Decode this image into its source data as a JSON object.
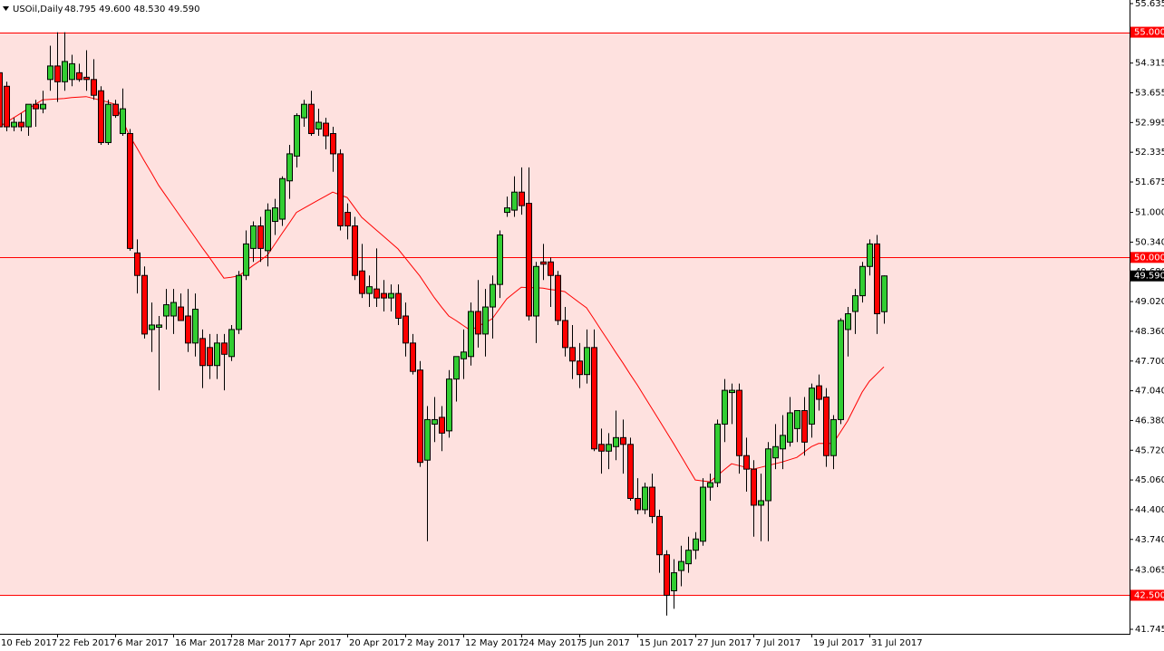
{
  "chart_data": {
    "type": "candlestick",
    "title": "USOil,Daily",
    "subtitle": "48.795 49.600 48.530 49.590",
    "categories": [
      "10 Feb 2017",
      null,
      null,
      null,
      null,
      null,
      null,
      null,
      "22 Feb 2017",
      null,
      null,
      null,
      null,
      null,
      null,
      null,
      "6 Mar 2017",
      null,
      null,
      null,
      null,
      null,
      null,
      null,
      "16 Mar 2017",
      null,
      null,
      null,
      null,
      null,
      null,
      null,
      "28 Mar 2017",
      null,
      null,
      null,
      null,
      null,
      null,
      null,
      "7 Apr 2017",
      null,
      null,
      null,
      null,
      null,
      null,
      null,
      "20 Apr 2017",
      null,
      null,
      null,
      null,
      null,
      null,
      null,
      "2 May 2017",
      null,
      null,
      null,
      null,
      null,
      null,
      null,
      "12 May 2017",
      null,
      null,
      null,
      null,
      null,
      null,
      null,
      "24 May 2017",
      null,
      null,
      null,
      null,
      null,
      null,
      null,
      "5 Jun 2017",
      null,
      null,
      null,
      null,
      null,
      null,
      null,
      "15 Jun 2017",
      null,
      null,
      null,
      null,
      null,
      null,
      null,
      "27 Jun 2017",
      null,
      null,
      null,
      null,
      null,
      null,
      null,
      "7 Jul 2017",
      null,
      null,
      null,
      null,
      null,
      null,
      null,
      "19 Jul 2017",
      null,
      null,
      null,
      null,
      null,
      null,
      null,
      "31 Jul 2017",
      null,
      null
    ],
    "open": [
      54.1,
      53.8,
      52.9,
      53.0,
      52.9,
      53.4,
      53.3,
      53.95,
      54.25,
      53.9,
      53.95,
      54.1,
      54.0,
      53.95,
      53.7,
      52.55,
      53.4,
      52.75,
      52.75,
      50.1,
      49.6,
      48.4,
      48.45,
      48.7,
      48.7,
      48.9,
      48.7,
      48.1,
      48.2,
      48.0,
      47.6,
      48.1,
      47.8,
      48.4,
      49.6,
      50.2,
      50.7,
      50.15,
      50.8,
      50.85,
      51.7,
      52.25,
      53.1,
      53.4,
      52.85,
      52.98,
      52.75,
      52.3,
      51.0,
      50.7,
      49.7,
      49.2,
      49.3,
      49.2,
      49.1,
      49.2,
      48.7,
      48.1,
      47.5,
      45.5,
      46.3,
      46.45,
      46.15,
      47.3,
      47.75,
      47.8,
      48.8,
      48.3,
      48.9,
      49.4,
      51.0,
      51.05,
      51.45,
      51.2,
      48.7,
      49.9,
      49.9,
      49.6,
      48.6,
      48.0,
      47.7,
      47.4,
      48.0,
      45.85,
      45.7,
      45.8,
      46.0,
      45.85,
      44.65,
      44.4,
      44.9,
      44.25,
      43.4,
      42.6,
      43.05,
      43.2,
      43.5,
      43.7,
      44.9,
      45.0,
      46.3,
      47.0,
      47.05,
      45.6,
      45.3,
      44.5,
      44.6,
      45.55,
      45.75,
      45.9,
      46.2,
      46.6,
      46.3,
      47.15,
      46.9,
      45.6,
      46.4,
      48.4,
      48.8,
      49.15,
      49.8,
      50.3,
      48.795
    ],
    "high": [
      54.3,
      53.9,
      53.1,
      53.2,
      53.4,
      53.5,
      53.7,
      54.7,
      55.0,
      55.0,
      54.5,
      54.3,
      54.6,
      54.4,
      53.8,
      53.5,
      53.5,
      53.75,
      52.85,
      50.4,
      49.8,
      49.0,
      48.7,
      49.3,
      49.3,
      49.2,
      49.3,
      49.2,
      48.4,
      48.3,
      48.3,
      48.3,
      48.5,
      49.7,
      50.6,
      50.8,
      50.9,
      51.2,
      51.3,
      51.8,
      52.5,
      53.2,
      53.5,
      53.7,
      53.3,
      53.1,
      52.9,
      52.4,
      51.2,
      50.9,
      50.3,
      49.6,
      50.2,
      49.5,
      49.4,
      49.4,
      49.0,
      48.3,
      47.7,
      46.7,
      46.9,
      46.7,
      47.5,
      47.8,
      48.4,
      49.0,
      49.5,
      49.3,
      49.6,
      50.6,
      51.35,
      51.8,
      52.0,
      52.0,
      49.9,
      50.3,
      50.0,
      49.7,
      48.9,
      48.5,
      48.1,
      48.4,
      48.4,
      46.2,
      46.1,
      46.6,
      46.4,
      46.0,
      45.1,
      45.0,
      45.2,
      44.4,
      43.5,
      43.3,
      43.6,
      43.8,
      43.9,
      45.1,
      45.2,
      46.4,
      47.3,
      47.2,
      47.2,
      46.0,
      45.5,
      45.2,
      45.9,
      46.3,
      46.5,
      46.9,
      46.6,
      46.9,
      47.2,
      47.4,
      47.1,
      46.5,
      48.65,
      48.9,
      49.3,
      49.9,
      50.4,
      50.5,
      49.6
    ],
    "low": [
      52.8,
      52.8,
      52.8,
      52.8,
      52.7,
      52.9,
      53.2,
      53.7,
      53.45,
      53.7,
      53.8,
      53.9,
      53.7,
      53.5,
      52.5,
      52.5,
      53.1,
      52.7,
      50.15,
      49.2,
      48.2,
      47.9,
      47.05,
      48.4,
      48.3,
      48.6,
      47.9,
      47.8,
      47.1,
      47.3,
      47.3,
      47.05,
      47.7,
      48.3,
      49.5,
      49.9,
      49.9,
      49.8,
      50.5,
      50.7,
      51.3,
      52.0,
      52.9,
      52.7,
      52.7,
      52.4,
      51.9,
      50.6,
      50.4,
      49.5,
      49.1,
      48.9,
      48.9,
      48.8,
      48.8,
      48.5,
      47.8,
      47.4,
      45.35,
      43.7,
      45.9,
      45.7,
      46.0,
      46.8,
      47.3,
      47.6,
      48.0,
      47.8,
      48.2,
      49.1,
      50.9,
      50.9,
      50.95,
      48.6,
      48.1,
      49.5,
      48.9,
      48.5,
      47.8,
      47.3,
      47.1,
      47.2,
      45.7,
      45.2,
      45.3,
      45.5,
      45.2,
      44.6,
      44.3,
      44.3,
      44.1,
      43.0,
      42.05,
      42.2,
      42.7,
      43.0,
      43.3,
      43.6,
      44.6,
      44.9,
      45.9,
      46.3,
      45.2,
      44.8,
      43.8,
      43.7,
      43.7,
      45.3,
      45.3,
      45.8,
      45.9,
      45.6,
      46.0,
      46.6,
      45.35,
      45.3,
      46.3,
      47.8,
      48.3,
      49.0,
      49.6,
      48.3,
      48.53
    ],
    "close": [
      52.9,
      52.9,
      53.0,
      52.9,
      53.4,
      53.3,
      53.4,
      54.25,
      53.9,
      54.35,
      54.3,
      53.95,
      53.95,
      53.6,
      52.55,
      53.4,
      53.15,
      53.3,
      50.2,
      49.6,
      48.3,
      48.5,
      48.5,
      48.95,
      49.0,
      48.6,
      48.1,
      48.85,
      47.6,
      47.6,
      48.1,
      47.85,
      48.4,
      49.6,
      50.3,
      50.7,
      50.2,
      51.05,
      51.1,
      51.75,
      52.3,
      53.15,
      53.4,
      52.75,
      53.0,
      52.7,
      52.3,
      50.7,
      50.7,
      49.6,
      49.2,
      49.35,
      49.1,
      49.1,
      49.2,
      48.65,
      48.1,
      47.47,
      45.45,
      46.4,
      46.4,
      46.1,
      47.3,
      47.8,
      47.9,
      48.8,
      48.3,
      48.9,
      49.4,
      50.5,
      51.1,
      51.45,
      51.15,
      48.7,
      49.8,
      49.85,
      49.6,
      48.6,
      48.0,
      47.7,
      47.4,
      48.0,
      45.75,
      45.7,
      45.85,
      46.0,
      45.85,
      44.65,
      44.4,
      44.9,
      44.25,
      43.4,
      42.5,
      43.0,
      43.25,
      43.5,
      43.75,
      44.9,
      45.0,
      46.3,
      47.05,
      47.05,
      45.6,
      45.3,
      44.5,
      44.6,
      45.75,
      45.8,
      46.05,
      46.55,
      46.6,
      45.9,
      47.1,
      46.85,
      45.6,
      46.4,
      48.6,
      48.75,
      49.15,
      49.8,
      50.3,
      48.75,
      49.59
    ],
    "ma": {
      "color": "#ff0000",
      "values": [
        52.9,
        53.0,
        53.1,
        53.2,
        53.3,
        53.4,
        53.5,
        53.51,
        53.52,
        53.53,
        53.55,
        53.56,
        53.57,
        53.53,
        53.49,
        53.45,
        53.4,
        53.05,
        52.7,
        52.43,
        52.15,
        51.88,
        51.6,
        51.37,
        51.14,
        50.91,
        50.68,
        50.45,
        50.22,
        50.0,
        49.77,
        49.54,
        49.56,
        49.59,
        49.7,
        49.82,
        49.93,
        50.05,
        50.29,
        50.53,
        50.76,
        51.0,
        51.09,
        51.18,
        51.27,
        51.36,
        51.45,
        51.39,
        51.33,
        51.11,
        50.89,
        50.75,
        50.61,
        50.47,
        50.33,
        50.19,
        49.99,
        49.79,
        49.59,
        49.35,
        49.11,
        48.9,
        48.7,
        48.6,
        48.49,
        48.38,
        48.47,
        48.55,
        48.64,
        48.86,
        49.08,
        49.21,
        49.34,
        49.33,
        49.33,
        49.32,
        49.29,
        49.27,
        49.24,
        49.12,
        49.0,
        48.88,
        48.64,
        48.39,
        48.15,
        47.9,
        47.66,
        47.41,
        47.17,
        46.91,
        46.65,
        46.39,
        46.13,
        45.87,
        45.6,
        45.33,
        45.06,
        45.04,
        45.02,
        45.15,
        45.29,
        45.42,
        45.38,
        45.34,
        45.3,
        45.34,
        45.38,
        45.42,
        45.46,
        45.51,
        45.56,
        45.68,
        45.8,
        45.87,
        45.87,
        45.87,
        46.12,
        46.37,
        46.69,
        47.01,
        47.25,
        47.41,
        47.57
      ]
    },
    "up_color": "#32cd32",
    "down_color": "#ff0000",
    "zone_color": "#fee1df",
    "ylim": [
      41.645,
      55.715
    ],
    "yticks": [
      55.635,
      54.315,
      53.655,
      52.995,
      52.335,
      51.675,
      {
        "value": 51,
        "label": "51.000"
      },
      {
        "value": 50.34,
        "label": "50.340"
      },
      {
        "value": 49.68,
        "label": "49.680"
      },
      {
        "value": 49.02,
        "label": "49.020"
      },
      {
        "value": 48.36,
        "label": "48.360"
      },
      {
        "value": 47.7,
        "label": "47.700"
      },
      {
        "value": 47.04,
        "label": "47.040"
      },
      {
        "value": 46.38,
        "label": "46.380"
      },
      {
        "value": 45.72,
        "label": "45.720"
      },
      {
        "value": 45.06,
        "label": "45.060"
      },
      {
        "value": 44.4,
        "label": "44.400"
      },
      {
        "value": 43.74,
        "label": "43.740"
      },
      43.065,
      41.745
    ],
    "levels": [
      {
        "value": 55,
        "label": "55.000"
      },
      {
        "value": 50,
        "label": "50.000"
      },
      {
        "value": 42.5,
        "label": "42.500"
      }
    ],
    "level_color": "#ff0000",
    "last_price": {
      "value": 49.59,
      "label": "49.590"
    },
    "grid": false
  }
}
